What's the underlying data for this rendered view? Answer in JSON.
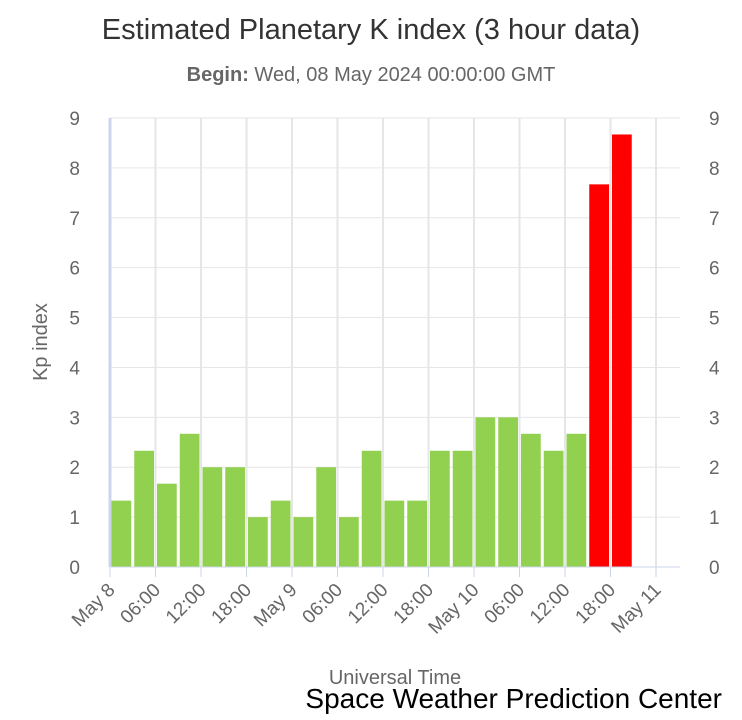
{
  "title": "Estimated Planetary K index (3 hour data)",
  "subtitle": {
    "label": "Begin:",
    "value": "Wed, 08 May 2024 00:00:00 GMT"
  },
  "credit": "Space Weather Prediction Center",
  "chart_data": {
    "type": "bar",
    "title": "Estimated Planetary K index (3 hour data)",
    "xlabel": "Universal Time",
    "ylabel": "Kp index",
    "ylim": [
      0,
      9
    ],
    "yticks": [
      0,
      1,
      2,
      3,
      4,
      5,
      6,
      7,
      8,
      9
    ],
    "grid": true,
    "x_tick_labels": [
      "May 8",
      "06:00",
      "12:00",
      "18:00",
      "May 9",
      "06:00",
      "12:00",
      "18:00",
      "May 10",
      "06:00",
      "12:00",
      "18:00",
      "May 11"
    ],
    "categories": [
      "May 8 00:00",
      "May 8 03:00",
      "May 8 06:00",
      "May 8 09:00",
      "May 8 12:00",
      "May 8 15:00",
      "May 8 18:00",
      "May 8 21:00",
      "May 9 00:00",
      "May 9 03:00",
      "May 9 06:00",
      "May 9 09:00",
      "May 9 12:00",
      "May 9 15:00",
      "May 9 18:00",
      "May 9 21:00",
      "May 10 00:00",
      "May 10 03:00",
      "May 10 06:00",
      "May 10 09:00",
      "May 10 12:00",
      "May 10 15:00",
      "May 10 18:00"
    ],
    "values": [
      1.33,
      2.33,
      1.67,
      2.67,
      2.0,
      2.0,
      1.0,
      1.33,
      1.0,
      2.0,
      1.0,
      2.33,
      1.33,
      1.33,
      2.33,
      2.33,
      3.0,
      3.0,
      2.67,
      2.33,
      2.67,
      7.67,
      8.67
    ],
    "colors": {
      "normal": "#92d050",
      "storm": "#ff0000",
      "grid": "#e6e6e6",
      "axis": "#ccd6eb"
    },
    "storm_threshold": 5
  }
}
